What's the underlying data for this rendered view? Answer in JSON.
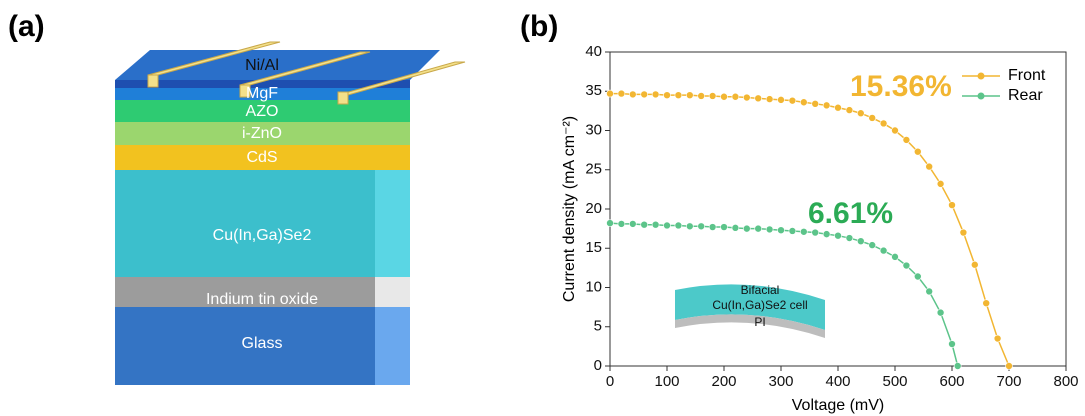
{
  "panels": [
    "(a)",
    "(b)"
  ],
  "diagram": {
    "layers": [
      {
        "label": "Ni/Al"
      },
      {
        "label": "MgF"
      },
      {
        "label": "AZO"
      },
      {
        "label": "i-ZnO"
      },
      {
        "label": "CdS"
      },
      {
        "label": "Cu(In,Ga)Se2"
      },
      {
        "label": "Indium tin oxide"
      },
      {
        "label": "Glass"
      }
    ]
  },
  "chart_data": {
    "type": "line",
    "x_label": "Voltage (mV)",
    "y_label": "Current density (mA cm⁻²)",
    "xlim": [
      0,
      800
    ],
    "xticks": [
      0,
      100,
      200,
      300,
      400,
      500,
      600,
      700,
      800
    ],
    "ylim": [
      0,
      40
    ],
    "yticks": [
      0,
      5,
      10,
      15,
      20,
      25,
      30,
      35,
      40
    ],
    "legend": "upper right",
    "series": [
      {
        "name": "Front",
        "color": "#f2b632",
        "x": [
          0,
          20,
          40,
          60,
          80,
          100,
          120,
          140,
          160,
          180,
          200,
          220,
          240,
          260,
          280,
          300,
          320,
          340,
          360,
          380,
          400,
          420,
          440,
          460,
          480,
          500,
          520,
          540,
          560,
          580,
          600,
          620,
          640,
          660,
          680,
          700
        ],
        "values": [
          34.7,
          34.7,
          34.6,
          34.6,
          34.6,
          34.5,
          34.5,
          34.5,
          34.4,
          34.4,
          34.3,
          34.3,
          34.2,
          34.1,
          34.0,
          33.9,
          33.8,
          33.6,
          33.4,
          33.2,
          32.9,
          32.6,
          32.2,
          31.6,
          30.9,
          30.0,
          28.8,
          27.3,
          25.4,
          23.2,
          20.5,
          17.0,
          12.9,
          8.0,
          3.5,
          0
        ]
      },
      {
        "name": "Rear",
        "color": "#5cc48a",
        "x": [
          0,
          20,
          40,
          60,
          80,
          100,
          120,
          140,
          160,
          180,
          200,
          220,
          240,
          260,
          280,
          300,
          320,
          340,
          360,
          380,
          400,
          420,
          440,
          460,
          480,
          500,
          520,
          540,
          560,
          580,
          600,
          610
        ],
        "values": [
          18.2,
          18.1,
          18.1,
          18.0,
          18.0,
          17.9,
          17.9,
          17.8,
          17.8,
          17.7,
          17.7,
          17.6,
          17.5,
          17.5,
          17.4,
          17.3,
          17.2,
          17.1,
          17.0,
          16.8,
          16.6,
          16.3,
          15.9,
          15.4,
          14.7,
          13.9,
          12.8,
          11.4,
          9.5,
          6.8,
          2.8,
          0
        ]
      }
    ],
    "annotations": [
      {
        "text": "15.36%",
        "color": "#f2b632"
      },
      {
        "text": "6.61%",
        "color": "#2bab55"
      }
    ],
    "inset": [
      "Bifacial",
      "Cu(In,Ga)Se2 cell",
      "PI"
    ]
  }
}
